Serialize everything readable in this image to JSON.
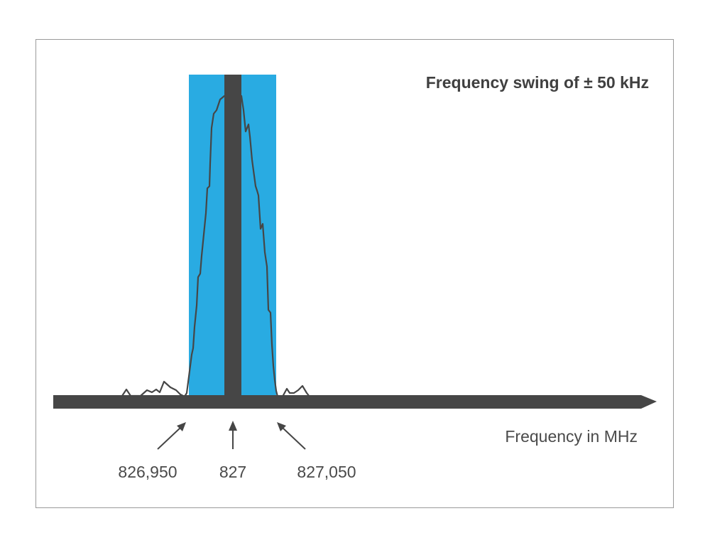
{
  "title": "Frequency swing of ± 50 kHz",
  "axis_label": "Frequency in MHz",
  "markers": {
    "low": "826,950",
    "center": "827",
    "high": "827,050"
  },
  "colors": {
    "band": "#29abe2",
    "dark": "#464646",
    "frame": "#9a9a9a",
    "background": "#ffffff"
  }
}
